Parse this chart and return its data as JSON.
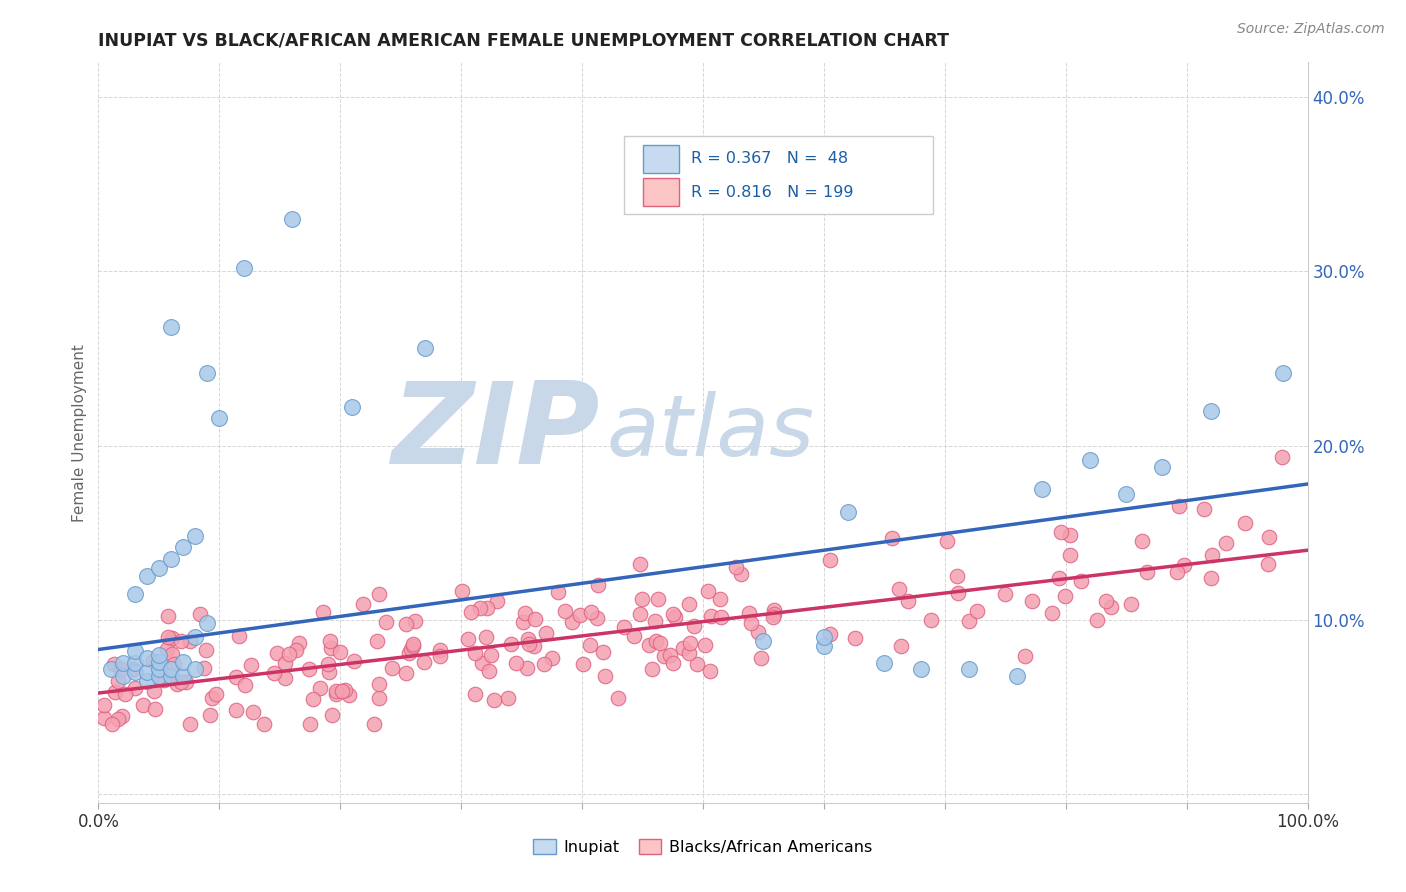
{
  "title": "INUPIAT VS BLACK/AFRICAN AMERICAN FEMALE UNEMPLOYMENT CORRELATION CHART",
  "source_text": "Source: ZipAtlas.com",
  "ylabel": "Female Unemployment",
  "xlim": [
    0.0,
    1.0
  ],
  "ylim": [
    -0.005,
    0.42
  ],
  "xticks": [
    0.0,
    0.1,
    0.2,
    0.3,
    0.4,
    0.5,
    0.6,
    0.7,
    0.8,
    0.9,
    1.0
  ],
  "xticklabels": [
    "0.0%",
    "",
    "",
    "",
    "",
    "",
    "",
    "",
    "",
    "",
    "100.0%"
  ],
  "yticks": [
    0.0,
    0.1,
    0.2,
    0.3,
    0.4
  ],
  "yticklabels": [
    "",
    "10.0%",
    "20.0%",
    "30.0%",
    "40.0%"
  ],
  "color_inupiat_scatter": "#a8c8e8",
  "color_inupiat_edge": "#6699cc",
  "color_inupiat_line": "#3366bb",
  "color_black_scatter": "#f4a0b0",
  "color_black_edge": "#e06080",
  "color_black_line": "#cc3366",
  "color_inupiat_fill_legend": "#c6dbef",
  "color_black_fill_legend": "#fcc5c5",
  "watermark_zip_color": "#c8d8e8",
  "watermark_atlas_color": "#c8d8e8",
  "background_color": "#ffffff",
  "grid_color": "#cccccc",
  "inupiat_trendline_x": [
    0.0,
    1.0
  ],
  "inupiat_trendline_y": [
    0.083,
    0.178
  ],
  "black_trendline_x": [
    0.0,
    1.0
  ],
  "black_trendline_y": [
    0.058,
    0.14
  ]
}
